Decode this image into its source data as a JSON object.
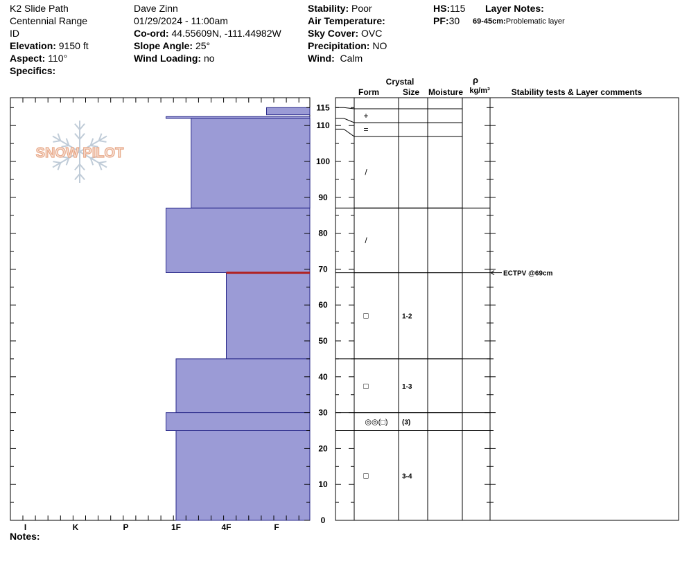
{
  "header": {
    "col1": [
      "K2 Slide Path",
      "Centennial Range",
      "ID"
    ],
    "elevation_label": "Elevation:",
    "elevation": "9150 ft",
    "aspect_label": "Aspect:",
    "aspect": "110°",
    "specifics_label": "Specifics:",
    "observer": "Dave Zinn",
    "datetime": "01/29/2024 - 11:00am",
    "coord_label": "Co-ord:",
    "coord": "44.55609N, -111.44982W",
    "slope_label": "Slope Angle:",
    "slope": "25°",
    "wind_loading_label": "Wind Loading:",
    "wind_loading": "no",
    "stability_label": "Stability:",
    "stability": "Poor",
    "air_temp_label": "Air Temperature:",
    "sky_label": "Sky Cover:",
    "sky": "OVC",
    "precip_label": "Precipitation:",
    "precip": "NO",
    "wind_label": "Wind:",
    "wind": "Calm",
    "hs_label": "HS:",
    "hs": "115",
    "pf_label": "PF:",
    "pf": "30",
    "layer_notes_label": "Layer Notes:",
    "layer_note_range": "69-45cm:",
    "layer_note_text": "Problematic layer"
  },
  "logo_text": "SNOW PILOT",
  "notes_label": "Notes:",
  "table_headers": {
    "crystal": "Crystal",
    "form": "Form",
    "size": "Size",
    "moisture": "Moisture",
    "rho": "ρ",
    "density_unit": "kg/m³",
    "comments": "Stability tests & Layer comments"
  },
  "chart_data": {
    "type": "bar",
    "title": "",
    "ylabel": "",
    "xlabel": "",
    "y_range": [
      0,
      118
    ],
    "y_ticks": [
      0,
      10,
      20,
      30,
      40,
      50,
      60,
      70,
      80,
      90,
      100,
      110,
      115
    ],
    "hardness_scale": [
      "I",
      "K",
      "P",
      "1F",
      "4F",
      "F"
    ],
    "hardness_index": {
      "F": 0,
      "4F": 1,
      "1F": 2,
      "P": 3,
      "K": 4,
      "I": 5
    },
    "layers": [
      {
        "top": 115,
        "bottom": 113,
        "hardness": "F+"
      },
      {
        "top": 112.5,
        "bottom": 112,
        "hardness": "1F+"
      },
      {
        "top": 112,
        "bottom": 87,
        "hardness": "1F-"
      },
      {
        "top": 87,
        "bottom": 69,
        "hardness": "1F+"
      },
      {
        "top": 69,
        "bottom": 45,
        "hardness": "4F"
      },
      {
        "top": 45,
        "bottom": 30,
        "hardness": "1F"
      },
      {
        "top": 30,
        "bottom": 25,
        "hardness": "1F+"
      },
      {
        "top": 25,
        "bottom": 0,
        "hardness": "1F"
      }
    ],
    "hardness_positions": {
      "F+": 0.2,
      "1F+": 2.2,
      "1F-": 1.7,
      "4F": 1.0,
      "1F": 2.0
    },
    "weak_layer_cm": 69,
    "crystal_rows": [
      {
        "top": 115,
        "bottom": 112,
        "form": "+",
        "size": ""
      },
      {
        "top": 112,
        "bottom": 109,
        "form": "=",
        "size": ""
      },
      {
        "top": 109,
        "bottom": 87,
        "form": "/",
        "size": ""
      },
      {
        "top": 87,
        "bottom": 69,
        "form": "/",
        "size": ""
      },
      {
        "top": 69,
        "bottom": 45,
        "form": "□",
        "size": "1-2"
      },
      {
        "top": 45,
        "bottom": 30,
        "form": "□",
        "size": "1-3"
      },
      {
        "top": 30,
        "bottom": 25,
        "form": "◎◎(□)",
        "size": "(3)"
      },
      {
        "top": 25,
        "bottom": 0,
        "form": "□",
        "size": "3-4"
      }
    ],
    "stability_tests": [
      {
        "depth": 69,
        "text": "ECTPV @69cm"
      }
    ]
  },
  "colors": {
    "layer_fill": "#9b9bd6",
    "layer_stroke": "#2a2a8a",
    "weak_layer": "#b02020",
    "logo": "#e8a888",
    "flake": "#c0ccd8"
  }
}
